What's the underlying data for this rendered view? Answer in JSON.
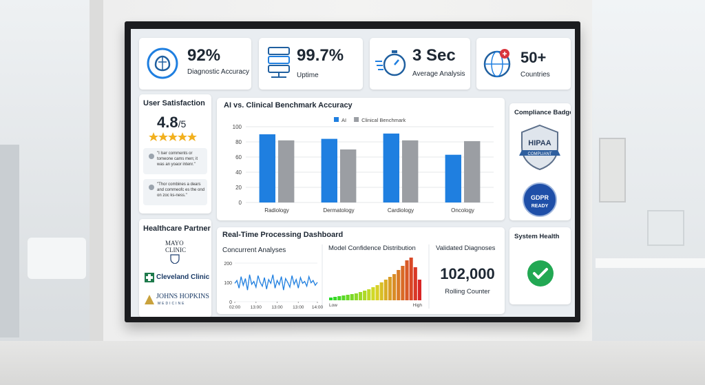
{
  "kpis": [
    {
      "value": "92%",
      "label": "Diagnostic Accuracy"
    },
    {
      "value": "99.7%",
      "label": "Uptime"
    },
    {
      "value": "3 Sec",
      "label": "Average Analysis"
    },
    {
      "value": "50+",
      "label": "Countries"
    }
  ],
  "satisfaction": {
    "title": "User Satisfaction",
    "rating": "4.8",
    "scale": "/5",
    "comments": [
      "\"I lser comments or tomeone cams men; it was an yoaor intenr.\"",
      "\"Thor combines a dears and commeofc es the ond on zoc ks-ness.\""
    ]
  },
  "partners": {
    "title": "Healthcare Partner",
    "logos": [
      "MAYO",
      "CLINIC",
      "Cleveland Clinic",
      "JOHNS HOPKINS",
      "MEDICINE"
    ]
  },
  "compliance": {
    "title": "Compliance Badges",
    "badges": [
      "HIPAA",
      "COMPLIANT",
      "GDPR",
      "READY"
    ]
  },
  "processing": {
    "title": "Real-Time Processing Dashboard",
    "validated_title": "Validated Diagnoses",
    "validated_value": "102,000",
    "validated_caption": "Rolling Counter"
  },
  "health": {
    "title": "System Health"
  },
  "chart_data": [
    {
      "type": "bar",
      "title": "AI vs. Clinical Benchmark Accuracy",
      "categories": [
        "Radiology",
        "Dermatology",
        "Cardiology",
        "Oncology"
      ],
      "series": [
        {
          "name": "AI",
          "color": "#1f7fe0",
          "values": [
            90,
            84,
            91,
            63
          ]
        },
        {
          "name": "Clinical Benchmark",
          "color": "#9b9ea3",
          "values": [
            82,
            70,
            82,
            81
          ]
        }
      ],
      "ylim": [
        0,
        100
      ],
      "yticks": [
        0,
        20,
        40,
        60,
        80,
        100
      ],
      "grid": true,
      "legend": "top"
    },
    {
      "type": "line",
      "title": "Concurrent Analyses",
      "color": "#1f7fe0",
      "values": [
        95,
        110,
        70,
        130,
        85,
        120,
        60,
        140,
        90,
        105,
        75,
        135,
        100,
        80,
        125,
        65,
        115,
        95,
        140,
        70,
        110,
        88,
        130,
        60,
        120,
        100,
        75,
        135,
        90,
        115,
        70,
        125,
        95,
        105,
        80,
        130,
        98,
        110,
        85,
        100
      ],
      "ylim": [
        0,
        200
      ],
      "yticks": [
        0,
        100,
        200
      ],
      "grid": true,
      "xticks": [
        {
          "value": 0,
          "label": "02:00"
        },
        {
          "value": 10,
          "label": "13:00"
        },
        {
          "value": 20,
          "label": "13:00"
        },
        {
          "value": 30,
          "label": "13:00"
        },
        {
          "value": 39,
          "label": "14:00"
        }
      ]
    },
    {
      "type": "histogram",
      "title": "Model Confidence Distribution",
      "values": [
        4,
        5,
        6,
        7,
        8,
        9,
        10,
        12,
        14,
        16,
        19,
        22,
        26,
        30,
        34,
        38,
        44,
        50,
        58,
        62,
        48,
        30
      ],
      "low_label": "Low",
      "high_label": "High"
    }
  ]
}
